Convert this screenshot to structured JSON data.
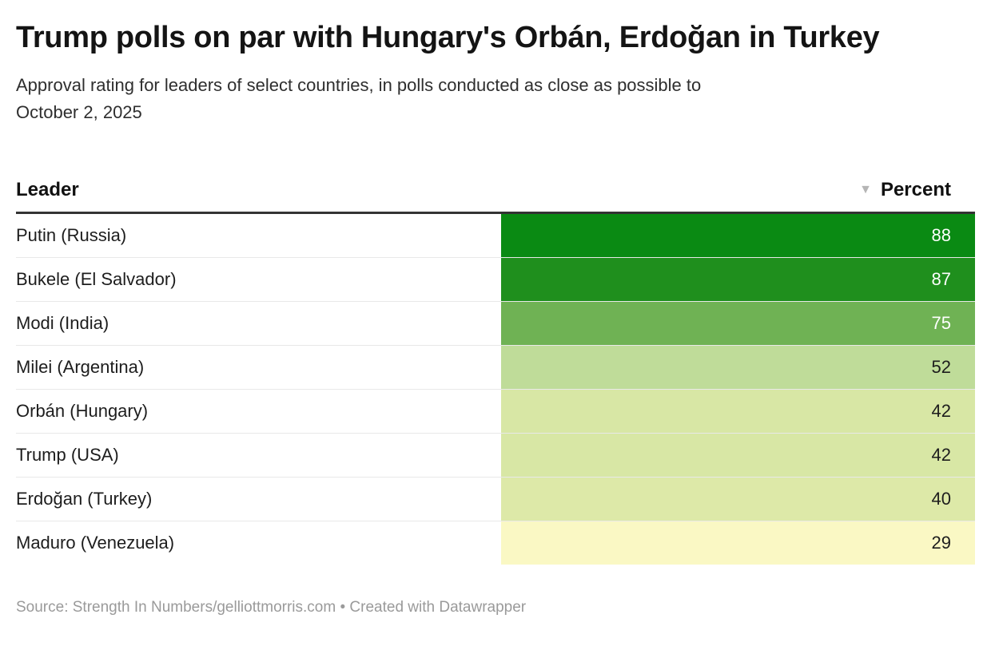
{
  "chart_data": {
    "type": "table",
    "title": "Trump polls on par with Hungary's Orbán, Erdoğan in Turkey",
    "subtitle": "Approval rating for leaders of select countries, in polls conducted as close as possible to\nOctober 2, 2025",
    "columns": [
      "Leader",
      "Percent"
    ],
    "sort": {
      "column": "Percent",
      "order": "descending",
      "icon": "▼"
    },
    "rows": [
      {
        "leader": "Putin (Russia)",
        "percent": 88,
        "cell_color": "#0a8a13",
        "text_color": "#ffffff"
      },
      {
        "leader": "Bukele (El Salvador)",
        "percent": 87,
        "cell_color": "#1f8f1d",
        "text_color": "#ffffff"
      },
      {
        "leader": "Modi (India)",
        "percent": 75,
        "cell_color": "#6fb254",
        "text_color": "#ffffff"
      },
      {
        "leader": "Milei (Argentina)",
        "percent": 52,
        "cell_color": "#bfdc99",
        "text_color": "#1d1d1d"
      },
      {
        "leader": "Orbán (Hungary)",
        "percent": 42,
        "cell_color": "#d8e7a5",
        "text_color": "#1d1d1d"
      },
      {
        "leader": "Trump (USA)",
        "percent": 42,
        "cell_color": "#d8e7a5",
        "text_color": "#1d1d1d"
      },
      {
        "leader": "Erdoğan (Turkey)",
        "percent": 40,
        "cell_color": "#dde9a8",
        "text_color": "#1d1d1d"
      },
      {
        "leader": "Maduro (Venezuela)",
        "percent": 29,
        "cell_color": "#faf8c4",
        "text_color": "#1d1d1d"
      }
    ],
    "legend_position": "none",
    "grid": "row-separators",
    "value_range": [
      0,
      100
    ],
    "color_scale": {
      "low": "#faf8c4",
      "high": "#0a8a13",
      "description": "yellow-to-green heatmap on Percent"
    }
  },
  "footer": {
    "text": "Source: Strength In Numbers/gelliottmorris.com • Created with Datawrapper"
  }
}
